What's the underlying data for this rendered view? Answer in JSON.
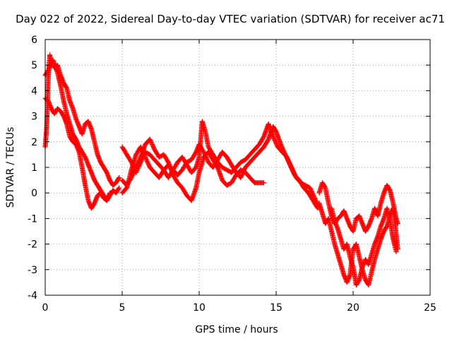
{
  "chart_data": {
    "type": "scatter",
    "title": "Day 022 of 2022, Sidereal Day-to-day VTEC variation (SDTVAR) for receiver ac71",
    "xlabel": "GPS time / hours",
    "ylabel": "SDTVAR / TECUs",
    "xlim": [
      0,
      25
    ],
    "ylim": [
      -4,
      6
    ],
    "xticks": [
      0,
      5,
      10,
      15,
      20,
      25
    ],
    "yticks": [
      -4,
      -3,
      -2,
      -1,
      0,
      1,
      2,
      3,
      4,
      5,
      6
    ],
    "xtick_labels": [
      "0",
      "5",
      "10",
      "15",
      "20",
      "25"
    ],
    "ytick_labels": [
      "-4",
      "-3",
      "-2",
      "-1",
      "0",
      "1",
      "2",
      "3",
      "4",
      "5",
      "6"
    ],
    "grid": true,
    "marker": "plus",
    "color": "#ff0000",
    "series": [
      {
        "name": "SDTVAR",
        "tracks": [
          [
            [
              0.0,
              1.8
            ],
            [
              0.1,
              2.6
            ],
            [
              0.2,
              4.5
            ],
            [
              0.3,
              5.4
            ],
            [
              0.4,
              5.1
            ],
            [
              0.6,
              4.9
            ],
            [
              0.8,
              5.0
            ],
            [
              1.0,
              4.6
            ],
            [
              1.2,
              4.3
            ],
            [
              1.4,
              4.1
            ],
            [
              1.6,
              3.6
            ],
            [
              1.8,
              3.3
            ],
            [
              2.0,
              2.9
            ],
            [
              2.2,
              2.6
            ],
            [
              2.4,
              2.3
            ],
            [
              2.6,
              2.7
            ],
            [
              2.8,
              2.8
            ],
            [
              3.0,
              2.5
            ],
            [
              3.2,
              2.0
            ],
            [
              3.4,
              1.5
            ],
            [
              3.6,
              1.2
            ],
            [
              3.8,
              1.0
            ],
            [
              4.0,
              0.8
            ],
            [
              4.2,
              0.5
            ],
            [
              4.4,
              0.3
            ],
            [
              4.6,
              0.4
            ],
            [
              4.8,
              0.6
            ]
          ],
          [
            [
              0.0,
              3.7
            ],
            [
              0.2,
              3.6
            ],
            [
              0.4,
              3.3
            ],
            [
              0.6,
              3.1
            ],
            [
              0.8,
              3.3
            ],
            [
              1.0,
              3.2
            ],
            [
              1.2,
              3.0
            ],
            [
              1.4,
              2.7
            ],
            [
              1.6,
              2.2
            ],
            [
              1.8,
              2.0
            ],
            [
              2.0,
              1.9
            ],
            [
              2.2,
              1.6
            ],
            [
              2.4,
              1.0
            ],
            [
              2.6,
              0.3
            ],
            [
              2.8,
              -0.3
            ],
            [
              3.0,
              -0.6
            ],
            [
              3.2,
              -0.4
            ],
            [
              3.4,
              -0.1
            ],
            [
              3.6,
              0.0
            ],
            [
              3.8,
              -0.2
            ],
            [
              4.0,
              -0.3
            ],
            [
              4.2,
              -0.1
            ],
            [
              4.4,
              0.1
            ],
            [
              4.6,
              0.0
            ],
            [
              4.8,
              0.2
            ]
          ],
          [
            [
              0.0,
              4.6
            ],
            [
              0.2,
              4.8
            ],
            [
              0.5,
              5.2
            ],
            [
              0.8,
              4.7
            ],
            [
              1.0,
              4.2
            ],
            [
              1.2,
              3.6
            ],
            [
              1.4,
              3.1
            ],
            [
              1.6,
              2.7
            ],
            [
              1.8,
              2.3
            ],
            [
              2.0,
              2.1
            ],
            [
              2.2,
              1.8
            ],
            [
              2.4,
              1.6
            ],
            [
              2.6,
              1.4
            ],
            [
              2.8,
              1.1
            ],
            [
              3.0,
              0.8
            ],
            [
              3.2,
              0.5
            ],
            [
              3.4,
              0.3
            ],
            [
              3.6,
              0.1
            ],
            [
              3.8,
              -0.1
            ],
            [
              4.0,
              -0.3
            ],
            [
              4.2,
              0.0
            ]
          ],
          [
            [
              5.0,
              1.8
            ],
            [
              5.3,
              1.5
            ],
            [
              5.6,
              1.2
            ],
            [
              5.9,
              0.8
            ],
            [
              6.2,
              1.2
            ],
            [
              6.5,
              1.6
            ],
            [
              6.8,
              1.5
            ],
            [
              7.1,
              1.3
            ],
            [
              7.4,
              1.1
            ],
            [
              7.7,
              0.9
            ],
            [
              8.0,
              0.6
            ],
            [
              8.3,
              0.9
            ],
            [
              8.6,
              1.2
            ],
            [
              8.9,
              1.4
            ],
            [
              9.2,
              1.1
            ],
            [
              9.5,
              0.8
            ],
            [
              9.8,
              1.0
            ],
            [
              10.0,
              1.4
            ],
            [
              10.2,
              2.8
            ],
            [
              10.4,
              2.4
            ],
            [
              10.6,
              1.8
            ],
            [
              10.9,
              1.5
            ],
            [
              11.2,
              1.2
            ],
            [
              11.5,
              1.0
            ],
            [
              11.8,
              0.9
            ],
            [
              12.1,
              0.8
            ],
            [
              12.4,
              1.0
            ],
            [
              12.7,
              1.2
            ],
            [
              13.0,
              1.3
            ],
            [
              13.3,
              1.5
            ],
            [
              13.6,
              1.7
            ],
            [
              13.9,
              1.9
            ],
            [
              14.2,
              2.2
            ],
            [
              14.5,
              2.7
            ],
            [
              14.8,
              2.2
            ],
            [
              15.1,
              1.8
            ],
            [
              15.4,
              1.6
            ],
            [
              15.7,
              1.4
            ],
            [
              16.0,
              1.0
            ],
            [
              16.3,
              0.6
            ],
            [
              16.6,
              0.4
            ],
            [
              16.9,
              0.3
            ],
            [
              17.2,
              0.2
            ],
            [
              17.5,
              -0.2
            ],
            [
              17.8,
              -0.6
            ]
          ],
          [
            [
              5.0,
              0.5
            ],
            [
              5.3,
              0.3
            ],
            [
              5.6,
              0.6
            ],
            [
              5.9,
              1.0
            ],
            [
              6.2,
              1.4
            ],
            [
              6.5,
              1.9
            ],
            [
              6.8,
              2.1
            ],
            [
              7.1,
              1.7
            ],
            [
              7.4,
              1.4
            ],
            [
              7.7,
              1.5
            ],
            [
              8.0,
              1.2
            ],
            [
              8.3,
              0.7
            ],
            [
              8.6,
              0.4
            ],
            [
              8.9,
              0.2
            ],
            [
              9.2,
              -0.1
            ],
            [
              9.5,
              -0.3
            ],
            [
              9.8,
              0.2
            ],
            [
              10.0,
              0.8
            ],
            [
              10.3,
              1.4
            ],
            [
              10.6,
              1.6
            ],
            [
              10.9,
              1.3
            ],
            [
              11.2,
              1.0
            ],
            [
              11.5,
              0.5
            ],
            [
              11.8,
              0.3
            ],
            [
              12.1,
              0.4
            ],
            [
              12.4,
              0.7
            ],
            [
              12.7,
              0.9
            ],
            [
              13.0,
              0.8
            ],
            [
              13.3,
              0.6
            ],
            [
              13.6,
              0.4
            ],
            [
              13.9,
              0.4
            ],
            [
              14.2,
              0.4
            ]
          ],
          [
            [
              5.0,
              0.0
            ],
            [
              5.3,
              0.2
            ],
            [
              5.6,
              0.9
            ],
            [
              5.9,
              1.5
            ],
            [
              6.2,
              1.8
            ],
            [
              6.5,
              1.4
            ],
            [
              6.8,
              1.0
            ],
            [
              7.1,
              0.8
            ],
            [
              7.4,
              0.6
            ],
            [
              7.7,
              0.9
            ],
            [
              8.0,
              1.1
            ],
            [
              8.3,
              0.9
            ],
            [
              8.6,
              0.7
            ],
            [
              8.9,
              0.9
            ],
            [
              9.2,
              1.2
            ],
            [
              9.5,
              1.3
            ],
            [
              9.8,
              1.6
            ],
            [
              10.0,
              1.9
            ],
            [
              10.3,
              1.6
            ],
            [
              10.6,
              1.2
            ],
            [
              10.9,
              1.0
            ],
            [
              11.2,
              1.3
            ],
            [
              11.5,
              1.6
            ],
            [
              11.8,
              1.4
            ],
            [
              12.1,
              1.1
            ],
            [
              12.4,
              0.8
            ],
            [
              12.7,
              0.6
            ],
            [
              13.0,
              1.0
            ],
            [
              13.3,
              1.2
            ],
            [
              13.6,
              1.4
            ],
            [
              13.9,
              1.6
            ],
            [
              14.2,
              1.8
            ],
            [
              14.5,
              2.1
            ],
            [
              14.8,
              2.6
            ],
            [
              15.0,
              2.4
            ],
            [
              15.3,
              1.9
            ],
            [
              15.6,
              1.5
            ],
            [
              15.9,
              1.1
            ],
            [
              16.2,
              0.7
            ],
            [
              16.5,
              0.5
            ],
            [
              16.8,
              0.2
            ],
            [
              17.1,
              0.0
            ],
            [
              17.4,
              -0.3
            ],
            [
              17.7,
              -0.6
            ]
          ],
          [
            [
              17.8,
              0.0
            ],
            [
              18.0,
              0.4
            ],
            [
              18.2,
              0.2
            ],
            [
              18.4,
              -0.4
            ],
            [
              18.6,
              -0.9
            ],
            [
              18.8,
              -1.2
            ],
            [
              19.0,
              -1.0
            ],
            [
              19.2,
              -0.9
            ],
            [
              19.4,
              -0.7
            ],
            [
              19.6,
              -1.0
            ],
            [
              19.8,
              -1.3
            ],
            [
              20.0,
              -1.5
            ],
            [
              20.2,
              -1.0
            ],
            [
              20.4,
              -0.9
            ],
            [
              20.6,
              -1.2
            ],
            [
              20.8,
              -1.5
            ],
            [
              21.0,
              -1.3
            ],
            [
              21.2,
              -1.0
            ],
            [
              21.4,
              -0.6
            ],
            [
              21.6,
              -0.9
            ],
            [
              21.8,
              -0.4
            ],
            [
              22.0,
              0.0
            ],
            [
              22.2,
              0.3
            ],
            [
              22.4,
              0.1
            ],
            [
              22.6,
              -0.4
            ],
            [
              22.8,
              -1.0
            ],
            [
              22.9,
              -1.2
            ]
          ],
          [
            [
              17.8,
              -0.4
            ],
            [
              18.0,
              -0.8
            ],
            [
              18.2,
              -1.2
            ],
            [
              18.4,
              -1.0
            ],
            [
              18.6,
              -1.5
            ],
            [
              18.8,
              -2.0
            ],
            [
              19.0,
              -2.4
            ],
            [
              19.2,
              -2.8
            ],
            [
              19.4,
              -3.2
            ],
            [
              19.6,
              -3.5
            ],
            [
              19.8,
              -3.2
            ],
            [
              20.0,
              -2.2
            ],
            [
              20.2,
              -2.0
            ],
            [
              20.4,
              -2.5
            ],
            [
              20.6,
              -3.0
            ],
            [
              20.8,
              -3.4
            ],
            [
              21.0,
              -3.6
            ],
            [
              21.2,
              -3.1
            ],
            [
              21.4,
              -2.6
            ],
            [
              21.6,
              -2.2
            ],
            [
              21.8,
              -1.8
            ],
            [
              22.0,
              -1.5
            ],
            [
              22.2,
              -1.3
            ],
            [
              22.4,
              -0.9
            ],
            [
              22.6,
              -0.6
            ],
            [
              22.8,
              -1.6
            ],
            [
              22.9,
              -2.2
            ]
          ],
          [
            [
              18.6,
              -0.6
            ],
            [
              18.8,
              -1.1
            ],
            [
              19.0,
              -1.4
            ],
            [
              19.2,
              -1.8
            ],
            [
              19.4,
              -2.2
            ],
            [
              19.6,
              -2.0
            ],
            [
              19.8,
              -2.5
            ],
            [
              20.0,
              -2.9
            ],
            [
              20.2,
              -3.6
            ],
            [
              20.4,
              -3.4
            ],
            [
              20.6,
              -2.9
            ],
            [
              20.8,
              -2.6
            ],
            [
              21.0,
              -2.8
            ],
            [
              21.2,
              -2.4
            ],
            [
              21.4,
              -2.0
            ],
            [
              21.6,
              -1.7
            ],
            [
              21.8,
              -1.3
            ],
            [
              22.0,
              -1.0
            ],
            [
              22.2,
              -0.6
            ],
            [
              22.4,
              -1.1
            ],
            [
              22.6,
              -1.8
            ],
            [
              22.8,
              -2.3
            ]
          ]
        ]
      }
    ]
  }
}
